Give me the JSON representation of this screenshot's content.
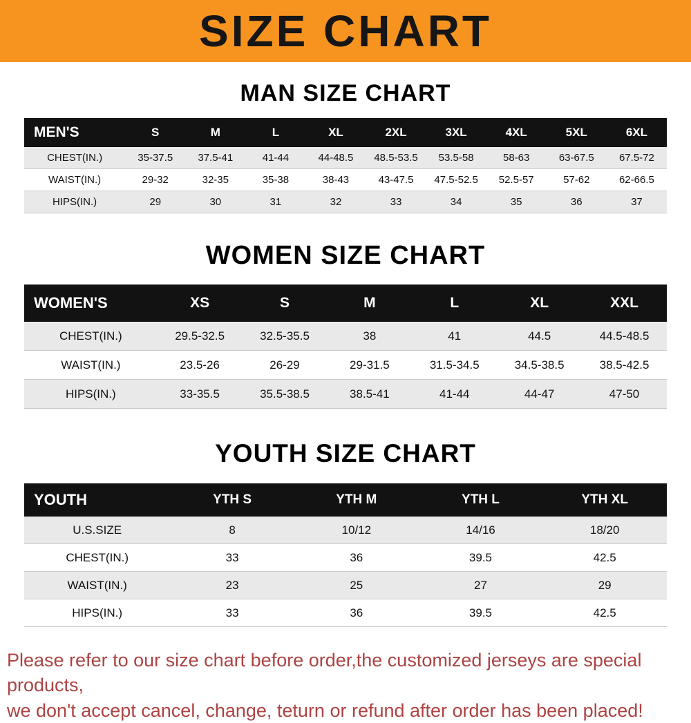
{
  "banner": {
    "title": "SIZE CHART",
    "bg_color": "#f79420"
  },
  "footer": {
    "line1": "Please refer to our size chart before order,the customized jerseys are special products,",
    "line2": "we don't accept cancel, change, teturn or refund after order has been placed!",
    "text_color": "#ad4343"
  },
  "chart_data": [
    {
      "type": "table",
      "title": "MAN SIZE CHART",
      "columns": [
        "MEN'S",
        "S",
        "M",
        "L",
        "XL",
        "2XL",
        "3XL",
        "4XL",
        "5XL",
        "6XL"
      ],
      "rows": [
        [
          "CHEST(IN.)",
          "35-37.5",
          "37.5-41",
          "41-44",
          "44-48.5",
          "48.5-53.5",
          "53.5-58",
          "58-63",
          "63-67.5",
          "67.5-72"
        ],
        [
          "WAIST(IN.)",
          "29-32",
          "32-35",
          "35-38",
          "38-43",
          "43-47.5",
          "47.5-52.5",
          "52.5-57",
          "57-62",
          "62-66.5"
        ],
        [
          "HIPS(IN.)",
          "29",
          "30",
          "31",
          "32",
          "33",
          "34",
          "35",
          "36",
          "37"
        ]
      ]
    },
    {
      "type": "table",
      "title": "WOMEN SIZE CHART",
      "columns": [
        "WOMEN'S",
        "XS",
        "S",
        "M",
        "L",
        "XL",
        "XXL"
      ],
      "rows": [
        [
          "CHEST(IN.)",
          "29.5-32.5",
          "32.5-35.5",
          "38",
          "41",
          "44.5",
          "44.5-48.5"
        ],
        [
          "WAIST(IN.)",
          "23.5-26",
          "26-29",
          "29-31.5",
          "31.5-34.5",
          "34.5-38.5",
          "38.5-42.5"
        ],
        [
          "HIPS(IN.)",
          "33-35.5",
          "35.5-38.5",
          "38.5-41",
          "41-44",
          "44-47",
          "47-50"
        ]
      ]
    },
    {
      "type": "table",
      "title": "YOUTH SIZE CHART",
      "columns": [
        "YOUTH",
        "YTH S",
        "YTH M",
        "YTH L",
        "YTH XL"
      ],
      "rows": [
        [
          "U.S.SIZE",
          "8",
          "10/12",
          "14/16",
          "18/20"
        ],
        [
          "CHEST(IN.)",
          "33",
          "36",
          "39.5",
          "42.5"
        ],
        [
          "WAIST(IN.)",
          "23",
          "25",
          "27",
          "29"
        ],
        [
          "HIPS(IN.)",
          "33",
          "36",
          "39.5",
          "42.5"
        ]
      ]
    }
  ]
}
